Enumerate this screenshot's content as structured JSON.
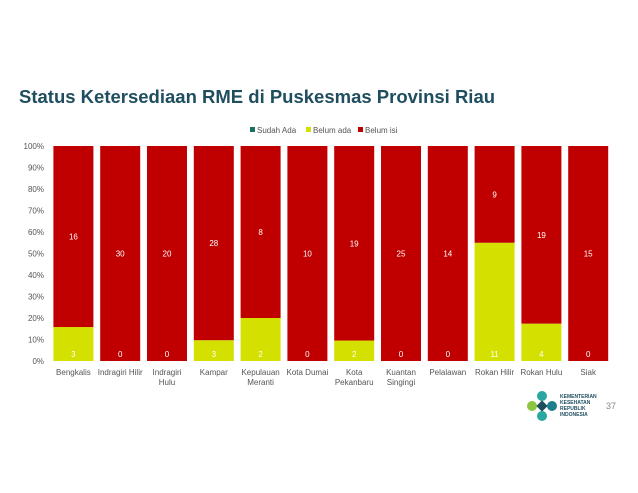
{
  "slide": {
    "title": "Status Ketersediaan RME di Puskesmas Provinsi Riau",
    "page_number": "37",
    "logo_lines": [
      "KEMENTERIAN",
      "KESEHATAN",
      "REPUBLIK",
      "INDONESIA"
    ]
  },
  "chart_data": {
    "type": "bar",
    "stacked": "percent",
    "categories": [
      "Bengkalis",
      "Indragiri Hilir",
      "Indragiri Hulu",
      "Kampar",
      "Kepulauan Meranti",
      "Kota Dumai",
      "Kota Pekanbaru",
      "Kuantan Singingi",
      "Pelalawan",
      "Rokan Hilir",
      "Rokan Hulu",
      "Siak"
    ],
    "category_lines": [
      [
        "Bengkalis"
      ],
      [
        "Indragiri Hilir"
      ],
      [
        "Indragiri",
        "Hulu"
      ],
      [
        "Kampar"
      ],
      [
        "Kepulauan",
        "Meranti"
      ],
      [
        "Kota Dumai"
      ],
      [
        "Kota",
        "Pekanbaru"
      ],
      [
        "Kuantan",
        "Singingi"
      ],
      [
        "Pelalawan"
      ],
      [
        "Rokan Hilir"
      ],
      [
        "Rokan Hulu"
      ],
      [
        "Siak"
      ]
    ],
    "series": [
      {
        "name": "Sudah Ada",
        "color": "#1f6f5f",
        "values": [
          0,
          0,
          0,
          0,
          0,
          0,
          0,
          0,
          0,
          0,
          0,
          0
        ]
      },
      {
        "name": "Belum ada",
        "color": "#d4e000",
        "values": [
          3,
          0,
          0,
          3,
          2,
          0,
          2,
          0,
          0,
          11,
          4,
          0
        ]
      },
      {
        "name": "Belum isi",
        "color": "#c00000",
        "values": [
          16,
          30,
          20,
          28,
          8,
          10,
          19,
          25,
          14,
          9,
          19,
          15
        ]
      }
    ],
    "y_ticks": [
      "0%",
      "10%",
      "20%",
      "30%",
      "40%",
      "50%",
      "60%",
      "70%",
      "80%",
      "90%",
      "100%"
    ],
    "ylim": [
      0,
      100
    ],
    "legend_position": "top-center",
    "grid": false
  }
}
